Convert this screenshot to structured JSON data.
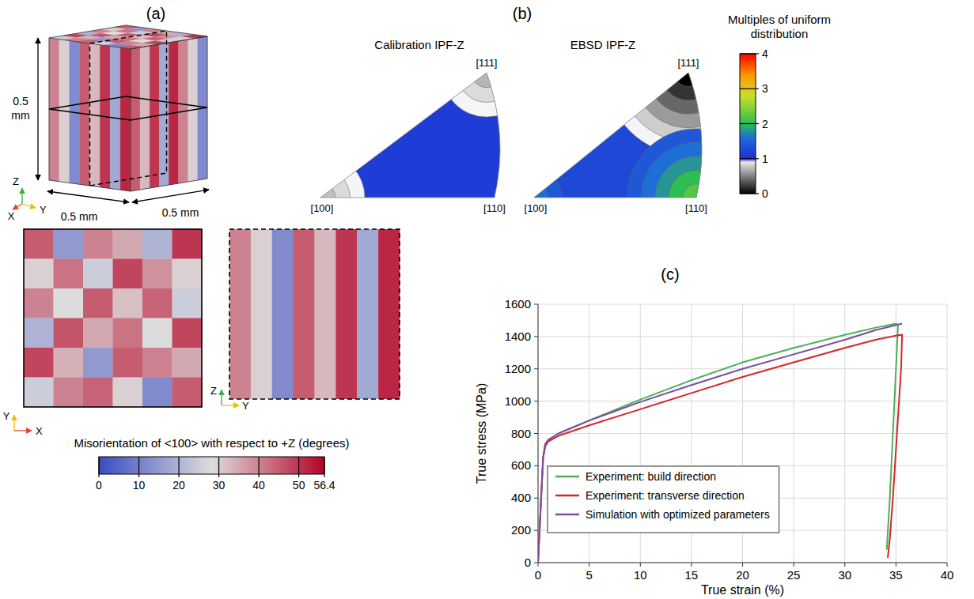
{
  "panel_a": {
    "label": "(a)",
    "dimensions": [
      "0.5 mm",
      "0.5 mm",
      "0.5 mm"
    ],
    "triad": [
      "X",
      "Y",
      "Z"
    ],
    "xy_map": {
      "axes": [
        "X",
        "Y"
      ],
      "cells": [
        [
          45,
          15,
          40,
          35,
          20,
          50
        ],
        [
          30,
          42,
          25,
          48,
          38,
          30
        ],
        [
          40,
          28,
          45,
          32,
          44,
          25
        ],
        [
          20,
          46,
          35,
          42,
          28,
          48
        ],
        [
          48,
          34,
          15,
          45,
          40,
          35
        ],
        [
          25,
          40,
          44,
          30,
          12,
          45
        ]
      ]
    },
    "yz_map": {
      "axes": [
        "Y",
        "Z"
      ],
      "columns": [
        40,
        30,
        12,
        45,
        33,
        50,
        18,
        52
      ]
    },
    "colorbar": {
      "title": "Misorientation of <100> with respect to +Z (degrees)",
      "range": [
        0,
        56.4
      ],
      "ticks": [
        0,
        10,
        20,
        30,
        40,
        50,
        56.4
      ]
    }
  },
  "panel_b": {
    "label": "(b)",
    "poles": [
      "[100]",
      "[110]",
      "[111]"
    ],
    "ipfs": [
      {
        "title": "Calibration IPF-Z",
        "base": 1.15,
        "contours": [
          {
            "pole": "[111]",
            "levels": [
              0.95,
              0.85,
              0.7
            ]
          },
          {
            "pole": "[100]",
            "levels": [
              0.95,
              0.85,
              0.75
            ]
          }
        ]
      },
      {
        "title": "EBSD IPF-Z",
        "base": 1.25,
        "contours": [
          {
            "pole": "[111]",
            "levels": [
              0.95,
              0.8,
              0.6,
              0.4,
              0.2,
              0
            ]
          },
          {
            "pole": "[110]",
            "levels": [
              1.4,
              1.6,
              1.8,
              2.0,
              2.2
            ]
          },
          {
            "pole": "[100]",
            "levels": [
              1.4,
              1.6
            ]
          }
        ]
      }
    ],
    "colorbar": {
      "title": "Multiples of uniform distribution",
      "range": [
        0,
        4
      ],
      "ticks": [
        0,
        1,
        2,
        3,
        4
      ]
    }
  },
  "chart_data": {
    "type": "line",
    "panel_label": "(c)",
    "x_label": "True strain (%)",
    "y_label": "True stress (MPa)",
    "xlim": [
      0,
      40
    ],
    "ylim": [
      0,
      1600
    ],
    "xticks": [
      0,
      5,
      10,
      15,
      20,
      25,
      30,
      35,
      40
    ],
    "yticks": [
      0,
      200,
      400,
      600,
      800,
      1000,
      1200,
      1400,
      1600
    ],
    "grid": true,
    "legend": "lower left",
    "series": [
      {
        "name": "Experiment: build direction",
        "color": "#4daf5a",
        "x": [
          0,
          0.3,
          0.5,
          0.7,
          1,
          2,
          5,
          10,
          15,
          20,
          25,
          30,
          33,
          35,
          35.2,
          35.0,
          34.7,
          34.4,
          34.1
        ],
        "values": [
          0,
          400,
          650,
          730,
          760,
          800,
          880,
          1010,
          1130,
          1240,
          1330,
          1410,
          1455,
          1480,
          1470,
          1200,
          800,
          400,
          80
        ]
      },
      {
        "name": "Experiment: transverse direction",
        "color": "#d62728",
        "x": [
          0,
          0.3,
          0.5,
          0.7,
          1,
          2,
          5,
          10,
          15,
          20,
          25,
          30,
          33,
          35,
          35.6,
          35.5,
          35.1,
          34.7,
          34.4,
          34.2
        ],
        "values": [
          0,
          400,
          650,
          720,
          750,
          785,
          850,
          950,
          1050,
          1150,
          1240,
          1330,
          1380,
          1405,
          1412,
          1200,
          800,
          400,
          150,
          30
        ]
      },
      {
        "name": "Simulation with optimized parameters",
        "color": "#7b4ea3",
        "x": [
          0,
          0.3,
          0.5,
          0.7,
          1,
          2,
          5,
          10,
          15,
          20,
          25,
          30,
          33,
          35.6
        ],
        "values": [
          0,
          400,
          650,
          735,
          760,
          800,
          880,
          995,
          1100,
          1200,
          1290,
          1380,
          1440,
          1480
        ]
      }
    ]
  }
}
